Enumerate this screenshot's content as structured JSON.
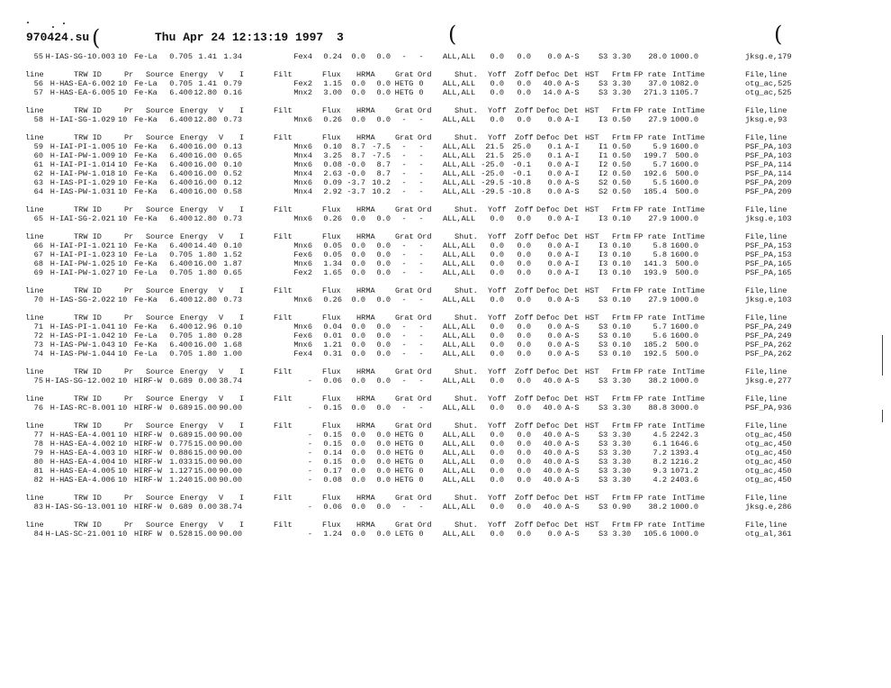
{
  "header": {
    "filename": "970424.su",
    "datetime": "Thu Apr 24 12:13:19 1997",
    "page": "3"
  },
  "columns": [
    "line",
    "TRW ID",
    "Pr",
    "Source",
    "Energy",
    "V",
    "I",
    "Filt",
    "Flux",
    "HRMA",
    "Grat",
    "Ord",
    "Shut.",
    "Yoff",
    "Zoff",
    "Defoc",
    "Det",
    "HST",
    "Frtm",
    "FP rate",
    "IntTime",
    "File,line"
  ],
  "groups": [
    {
      "show_header": false,
      "rows": [
        [
          "55",
          "H-IAS-SG-10.003",
          "10",
          "Fe-La",
          "0.705",
          "1.41",
          "1.34",
          "Fex4",
          "0.24",
          "0.0",
          "0.0",
          "-",
          "-",
          "ALL,ALL",
          "0.0",
          "0.0",
          "0.0",
          "A-S",
          "S3 3.30",
          "28.0",
          "1000.0",
          "jksg.e,179"
        ]
      ]
    },
    {
      "show_header": true,
      "rows": [
        [
          "56",
          "H-HAS-EA-6.002",
          "10",
          "Fe-La",
          "0.705",
          "1.41",
          "0.79",
          "Fex2",
          "1.15",
          "0.0",
          "0.0",
          "HETG",
          "0",
          "ALL,ALL",
          "0.0",
          "0.0",
          "40.0",
          "A-S",
          "S3 3.30",
          "37.0",
          "1082.0",
          "otg_ac,525"
        ],
        [
          "57",
          "H-HAS-EA-6.005",
          "10",
          "Fe-Ka",
          "6.400",
          "12.80",
          "0.16",
          "Mnx2",
          "3.00",
          "0.0",
          "0.0",
          "HETG",
          "0",
          "ALL,ALL",
          "0.0",
          "0.0",
          "14.0",
          "A-S",
          "S3 3.30",
          "271.3",
          "1105.7",
          "otg_ac,525"
        ]
      ]
    },
    {
      "show_header": true,
      "rows": [
        [
          "58",
          "H-IAI-SG-1.029",
          "10",
          "Fe-Ka",
          "6.400",
          "12.80",
          "0.73",
          "Mnx6",
          "0.26",
          "0.0",
          "0.0",
          "-",
          "-",
          "ALL,ALL",
          "0.0",
          "0.0",
          "0.0",
          "A-I",
          "I3 0.50",
          "27.9",
          "1000.0",
          "jksg.e,93"
        ]
      ]
    },
    {
      "show_header": true,
      "rows": [
        [
          "59",
          "H-IAI-PI-1.005",
          "10",
          "Fe-Ka",
          "6.400",
          "16.00",
          "0.13",
          "Mnx6",
          "0.10",
          "8.7",
          "-7.5",
          "-",
          "-",
          "ALL,ALL",
          "21.5",
          "25.0",
          "0.1",
          "A-I",
          "I1 0.50",
          "5.9",
          "1600.0",
          "PSF_PA,103"
        ],
        [
          "60",
          "H-IAI-PW-1.009",
          "10",
          "Fe-Ka",
          "6.400",
          "16.00",
          "0.65",
          "Mnx4",
          "3.25",
          "8.7",
          "-7.5",
          "-",
          "-",
          "ALL,ALL",
          "21.5",
          "25.0",
          "0.1",
          "A-I",
          "I1 0.50",
          "199.7",
          "500.0",
          "PSF_PA,103"
        ],
        [
          "61",
          "H-IAI-PI-1.014",
          "10",
          "Fe-Ka",
          "6.400",
          "16.00",
          "0.10",
          "Mnx6",
          "0.08",
          "-0.0",
          "8.7",
          "-",
          "-",
          "ALL,ALL",
          "-25.0",
          "-0.1",
          "0.0",
          "A-I",
          "I2 0.50",
          "5.7",
          "1600.0",
          "PSF_PA,114"
        ],
        [
          "62",
          "H-IAI-PW-1.018",
          "10",
          "Fe-Ka",
          "6.400",
          "16.00",
          "0.52",
          "Mnx4",
          "2.63",
          "-0.0",
          "8.7",
          "-",
          "-",
          "ALL,ALL",
          "-25.0",
          "-0.1",
          "0.0",
          "A-I",
          "I2 0.50",
          "192.6",
          "500.0",
          "PSF_PA,114"
        ],
        [
          "63",
          "H-IAS-PI-1.029",
          "10",
          "Fe-Ka",
          "6.400",
          "16.00",
          "0.12",
          "Mnx6",
          "0.09",
          "-3.7",
          "10.2",
          "-",
          "-",
          "ALL,ALL",
          "-29.5",
          "-10.8",
          "0.0",
          "A-S",
          "S2 0.50",
          "5.5",
          "1600.0",
          "PSF_PA,209"
        ],
        [
          "64",
          "H-IAS-PW-1.031",
          "10",
          "Fe-Ka",
          "6.400",
          "16.00",
          "0.58",
          "Mnx4",
          "2.92",
          "-3.7",
          "10.2",
          "-",
          "-",
          "ALL,ALL",
          "-29.5",
          "-10.8",
          "0.0",
          "A-S",
          "S2 0.50",
          "185.4",
          "500.0",
          "PSF_PA,209"
        ]
      ]
    },
    {
      "show_header": true,
      "rows": [
        [
          "65",
          "H-IAI-SG-2.021",
          "10",
          "Fe-Ka",
          "6.400",
          "12.80",
          "0.73",
          "Mnx6",
          "0.26",
          "0.0",
          "0.0",
          "-",
          "-",
          "ALL,ALL",
          "0.0",
          "0.0",
          "0.0",
          "A-I",
          "I3 0.10",
          "27.9",
          "1000.0",
          "jksg.e,103"
        ]
      ]
    },
    {
      "show_header": true,
      "rows": [
        [
          "66",
          "H-IAI-PI-1.021",
          "10",
          "Fe-Ka",
          "6.400",
          "14.40",
          "0.10",
          "Mnx6",
          "0.05",
          "0.0",
          "0.0",
          "-",
          "-",
          "ALL,ALL",
          "0.0",
          "0.0",
          "0.0",
          "A-I",
          "I3 0.10",
          "5.8",
          "1600.0",
          "PSF_PA,153"
        ],
        [
          "67",
          "H-IAI-PI-1.023",
          "10",
          "Fe-La",
          "0.705",
          "1.80",
          "1.52",
          "Fex6",
          "0.05",
          "0.0",
          "0.0",
          "-",
          "-",
          "ALL,ALL",
          "0.0",
          "0.0",
          "0.0",
          "A-I",
          "I3 0.10",
          "5.8",
          "1600.0",
          "PSF_PA,153"
        ],
        [
          "68",
          "H-IAI-PW-1.025",
          "10",
          "Fe-Ka",
          "6.400",
          "16.00",
          "1.87",
          "Mnx6",
          "1.34",
          "0.0",
          "0.0",
          "-",
          "-",
          "ALL,ALL",
          "0.0",
          "0.0",
          "0.0",
          "A-I",
          "I3 0.10",
          "141.3",
          "500.0",
          "PSF_PA,165"
        ],
        [
          "69",
          "H-IAI-PW-1.027",
          "10",
          "Fe-La",
          "0.705",
          "1.80",
          "0.65",
          "Fex2",
          "1.65",
          "0.0",
          "0.0",
          "-",
          "-",
          "ALL,ALL",
          "0.0",
          "0.0",
          "0.0",
          "A-I",
          "I3 0.10",
          "193.9",
          "500.0",
          "PSF_PA,165"
        ]
      ]
    },
    {
      "show_header": true,
      "rows": [
        [
          "70",
          "H-IAS-SG-2.022",
          "10",
          "Fe-Ka",
          "6.400",
          "12.80",
          "0.73",
          "Mnx6",
          "0.26",
          "0.0",
          "0.0",
          "-",
          "-",
          "ALL,ALL",
          "0.0",
          "0.0",
          "0.0",
          "A-S",
          "S3 0.10",
          "27.9",
          "1000.0",
          "jksg.e,103"
        ]
      ]
    },
    {
      "show_header": true,
      "rows": [
        [
          "71",
          "H-IAS-PI-1.041",
          "10",
          "Fe-Ka",
          "6.400",
          "12.96",
          "0.10",
          "Mnx6",
          "0.04",
          "0.0",
          "0.0",
          "-",
          "-",
          "ALL,ALL",
          "0.0",
          "0.0",
          "0.0",
          "A-S",
          "S3 0.10",
          "5.7",
          "1600.0",
          "PSF_PA,249"
        ],
        [
          "72",
          "H-IAS-PI-1.042",
          "10",
          "Fe-La",
          "0.705",
          "1.80",
          "0.28",
          "Fex6",
          "0.01",
          "0.0",
          "0.0",
          "-",
          "-",
          "ALL,ALL",
          "0.0",
          "0.0",
          "0.0",
          "A-S",
          "S3 0.10",
          "5.6",
          "1600.0",
          "PSF_PA,249"
        ],
        [
          "73",
          "H-IAS-PW-1.043",
          "10",
          "Fe-Ka",
          "6.400",
          "16.00",
          "1.68",
          "Mnx6",
          "1.21",
          "0.0",
          "0.0",
          "-",
          "-",
          "ALL,ALL",
          "0.0",
          "0.0",
          "0.0",
          "A-S",
          "S3 0.10",
          "185.2",
          "500.0",
          "PSF_PA,262"
        ],
        [
          "74",
          "H-IAS-PW-1.044",
          "10",
          "Fe-La",
          "0.705",
          "1.80",
          "1.00",
          "Fex4",
          "0.31",
          "0.0",
          "0.0",
          "-",
          "-",
          "ALL,ALL",
          "0.0",
          "0.0",
          "0.0",
          "A-S",
          "S3 0.10",
          "192.5",
          "500.0",
          "PSF_PA,262"
        ]
      ]
    },
    {
      "show_header": true,
      "rows": [
        [
          "75",
          "H-IAS-SG-12.002",
          "10",
          "HIRF-W",
          "0.689",
          "0.00",
          "38.74",
          "-",
          "0.06",
          "0.0",
          "0.0",
          "-",
          "-",
          "ALL,ALL",
          "0.0",
          "0.0",
          "40.0",
          "A-S",
          "S3 3.30",
          "38.2",
          "1000.0",
          "jksg.e,277"
        ]
      ]
    },
    {
      "show_header": true,
      "rows": [
        [
          "76",
          "H-IAS-RC-8.001",
          "10",
          "HIRF-W",
          "0.689",
          "15.00",
          "90.00",
          "-",
          "0.15",
          "0.0",
          "0.0",
          "-",
          "-",
          "ALL,ALL",
          "0.0",
          "0.0",
          "40.0",
          "A-S",
          "S3 3.30",
          "88.8",
          "3000.0",
          "PSF_PA,936"
        ]
      ]
    },
    {
      "show_header": true,
      "rows": [
        [
          "77",
          "H-HAS-EA-4.001",
          "10",
          "HIRF-W",
          "0.689",
          "15.00",
          "90.00",
          "-",
          "0.15",
          "0.0",
          "0.0",
          "HETG",
          "0",
          "ALL,ALL",
          "0.0",
          "0.0",
          "40.0",
          "A-S",
          "S3 3.30",
          "4.5",
          "2242.3",
          "otg_ac,450"
        ],
        [
          "78",
          "H-HAS-EA-4.002",
          "10",
          "HIRF-W",
          "0.775",
          "15.00",
          "90.00",
          "-",
          "0.15",
          "0.0",
          "0.0",
          "HETG",
          "0",
          "ALL,ALL",
          "0.0",
          "0.0",
          "40.0",
          "A-S",
          "S3 3.30",
          "6.1",
          "1646.6",
          "otg_ac,450"
        ],
        [
          "79",
          "H-HAS-EA-4.003",
          "10",
          "HIRF-W",
          "0.886",
          "15.00",
          "90.00",
          "-",
          "0.14",
          "0.0",
          "0.0",
          "HETG",
          "0",
          "ALL,ALL",
          "0.0",
          "0.0",
          "40.0",
          "A-S",
          "S3 3.30",
          "7.2",
          "1393.4",
          "otg_ac,450"
        ],
        [
          "80",
          "H-HAS-EA-4.004",
          "10",
          "HIRF-W",
          "1.033",
          "15.00",
          "90.00",
          "-",
          "0.15",
          "0.0",
          "0.0",
          "HETG",
          "0",
          "ALL,ALL",
          "0.0",
          "0.0",
          "40.0",
          "A-S",
          "S3 3.30",
          "8.2",
          "1216.2",
          "otg_ac,450"
        ],
        [
          "81",
          "H-HAS-EA-4.005",
          "10",
          "HIRF-W",
          "1.127",
          "15.00",
          "90.00",
          "-",
          "0.17",
          "0.0",
          "0.0",
          "HETG",
          "0",
          "ALL,ALL",
          "0.0",
          "0.0",
          "40.0",
          "A-S",
          "S3 3.30",
          "9.3",
          "1071.2",
          "otg_ac,450"
        ],
        [
          "82",
          "H-HAS-EA-4.006",
          "10",
          "HIRF-W",
          "1.240",
          "15.00",
          "90.00",
          "-",
          "0.08",
          "0.0",
          "0.0",
          "HETG",
          "0",
          "ALL,ALL",
          "0.0",
          "0.0",
          "40.0",
          "A-S",
          "S3 3.30",
          "4.2",
          "2403.6",
          "otg_ac,450"
        ]
      ]
    },
    {
      "show_header": true,
      "rows": [
        [
          "83",
          "H-IAS-SG-13.001",
          "10",
          "HIRF-W",
          "0.689",
          "0.00",
          "38.74",
          "-",
          "0.06",
          "0.0",
          "0.0",
          "-",
          "-",
          "ALL,ALL",
          "0.0",
          "0.0",
          "40.0",
          "A-S",
          "S3 0.90",
          "38.2",
          "1000.0",
          "jksg.e,286"
        ]
      ]
    },
    {
      "show_header": true,
      "rows": [
        [
          "84",
          "H-LAS-SC-21.001",
          "10",
          "HIRF W",
          "0.528",
          "15.00",
          "90.00",
          "-",
          "1.24",
          "0.0",
          "0.0",
          "LETG",
          "0",
          "ALL,ALL",
          "0.0",
          "0.0",
          "0.0",
          "A-S",
          "S3 3.30",
          "105.6",
          "1000.0",
          "otg_al,361"
        ]
      ]
    }
  ]
}
